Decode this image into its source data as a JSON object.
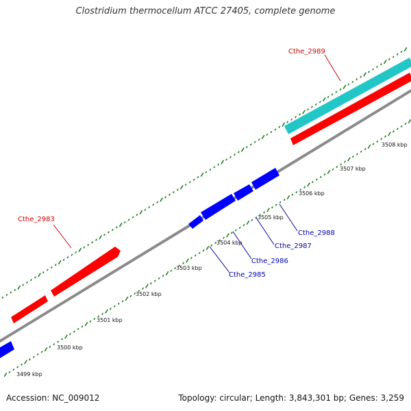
{
  "title": "Clostridium thermocellum ATCC 27405, complete genome",
  "footer": {
    "accession": "Accession: NC_009012",
    "stats": "Topology: circular; Length: 3,843,301 bp; Genes: 3,259"
  },
  "colors": {
    "forward_gene": "#ff0000",
    "reverse_gene": "#0000ff",
    "highlight_gene": "#22c6c6",
    "backbone": "#888888",
    "tick": "#1a7a1a",
    "forward_label": "#cc0000",
    "reverse_label": "#0000aa"
  },
  "scale_labels": [
    {
      "kbp": 3499,
      "text": "3499 kbp"
    },
    {
      "kbp": 3500,
      "text": "3500 kbp"
    },
    {
      "kbp": 3501,
      "text": "3501 kbp"
    },
    {
      "kbp": 3502,
      "text": "3502 kbp"
    },
    {
      "kbp": 3503,
      "text": "3503 kbp"
    },
    {
      "kbp": 3504,
      "text": "3504 kbp"
    },
    {
      "kbp": 3505,
      "text": "3505 kbp"
    },
    {
      "kbp": 3506,
      "text": "3506 kbp"
    },
    {
      "kbp": 3507,
      "text": "3507 kbp"
    },
    {
      "kbp": 3508,
      "text": "3508 kbp"
    }
  ],
  "gene_labels": {
    "cthe_2983": "Cthe_2983",
    "cthe_2985": "Cthe_2985",
    "cthe_2986": "Cthe_2986",
    "cthe_2987": "Cthe_2987",
    "cthe_2988": "Cthe_2988",
    "cthe_2989": "Cthe_2989"
  }
}
